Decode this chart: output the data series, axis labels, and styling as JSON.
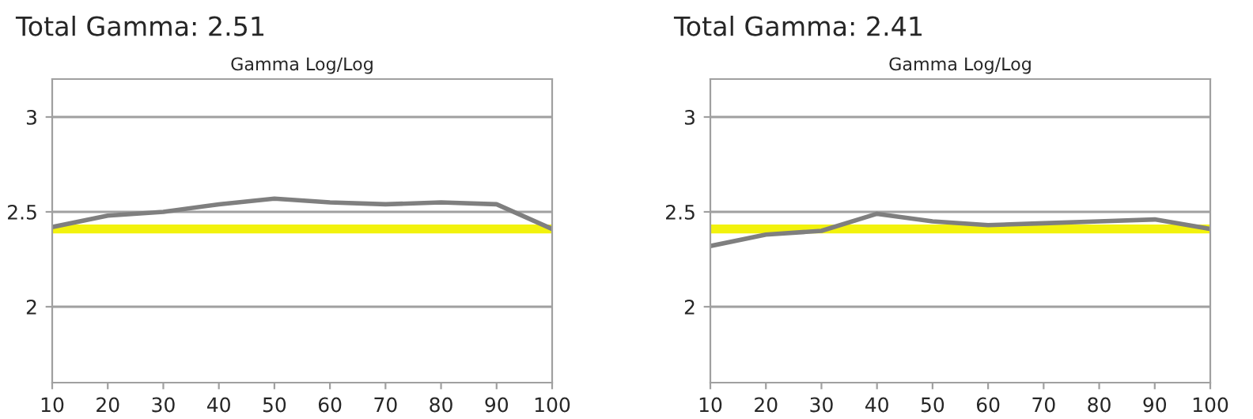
{
  "chart_data": [
    {
      "type": "line",
      "title": "Total Gamma: 2.51",
      "subtitle": "Gamma Log/Log",
      "x": [
        10,
        20,
        30,
        40,
        50,
        60,
        70,
        80,
        90,
        100
      ],
      "series": [
        {
          "color": "#7f7f7f",
          "values": [
            2.42,
            2.48,
            2.5,
            2.54,
            2.57,
            2.55,
            2.54,
            2.55,
            2.54,
            2.41
          ]
        }
      ],
      "ref_lines": [
        {
          "axis": "y",
          "value": 2.41,
          "color": "#f2f20c"
        }
      ],
      "xlim": [
        10,
        100
      ],
      "ylim": [
        1.6,
        3.2
      ],
      "xticks": [
        10,
        20,
        30,
        40,
        50,
        60,
        70,
        80,
        90,
        100
      ],
      "yticks": [
        2,
        2.5,
        3
      ],
      "grid": "y"
    },
    {
      "type": "line",
      "title": "Total Gamma: 2.41",
      "subtitle": "Gamma Log/Log",
      "x": [
        10,
        20,
        30,
        40,
        50,
        60,
        70,
        80,
        90,
        100
      ],
      "series": [
        {
          "color": "#7f7f7f",
          "values": [
            2.32,
            2.38,
            2.4,
            2.49,
            2.45,
            2.43,
            2.44,
            2.45,
            2.46,
            2.41
          ]
        }
      ],
      "ref_lines": [
        {
          "axis": "y",
          "value": 2.41,
          "color": "#f2f20c"
        }
      ],
      "xlim": [
        10,
        100
      ],
      "ylim": [
        1.6,
        3.2
      ],
      "xticks": [
        10,
        20,
        30,
        40,
        50,
        60,
        70,
        80,
        90,
        100
      ],
      "yticks": [
        2,
        2.5,
        3
      ],
      "grid": "y"
    }
  ]
}
